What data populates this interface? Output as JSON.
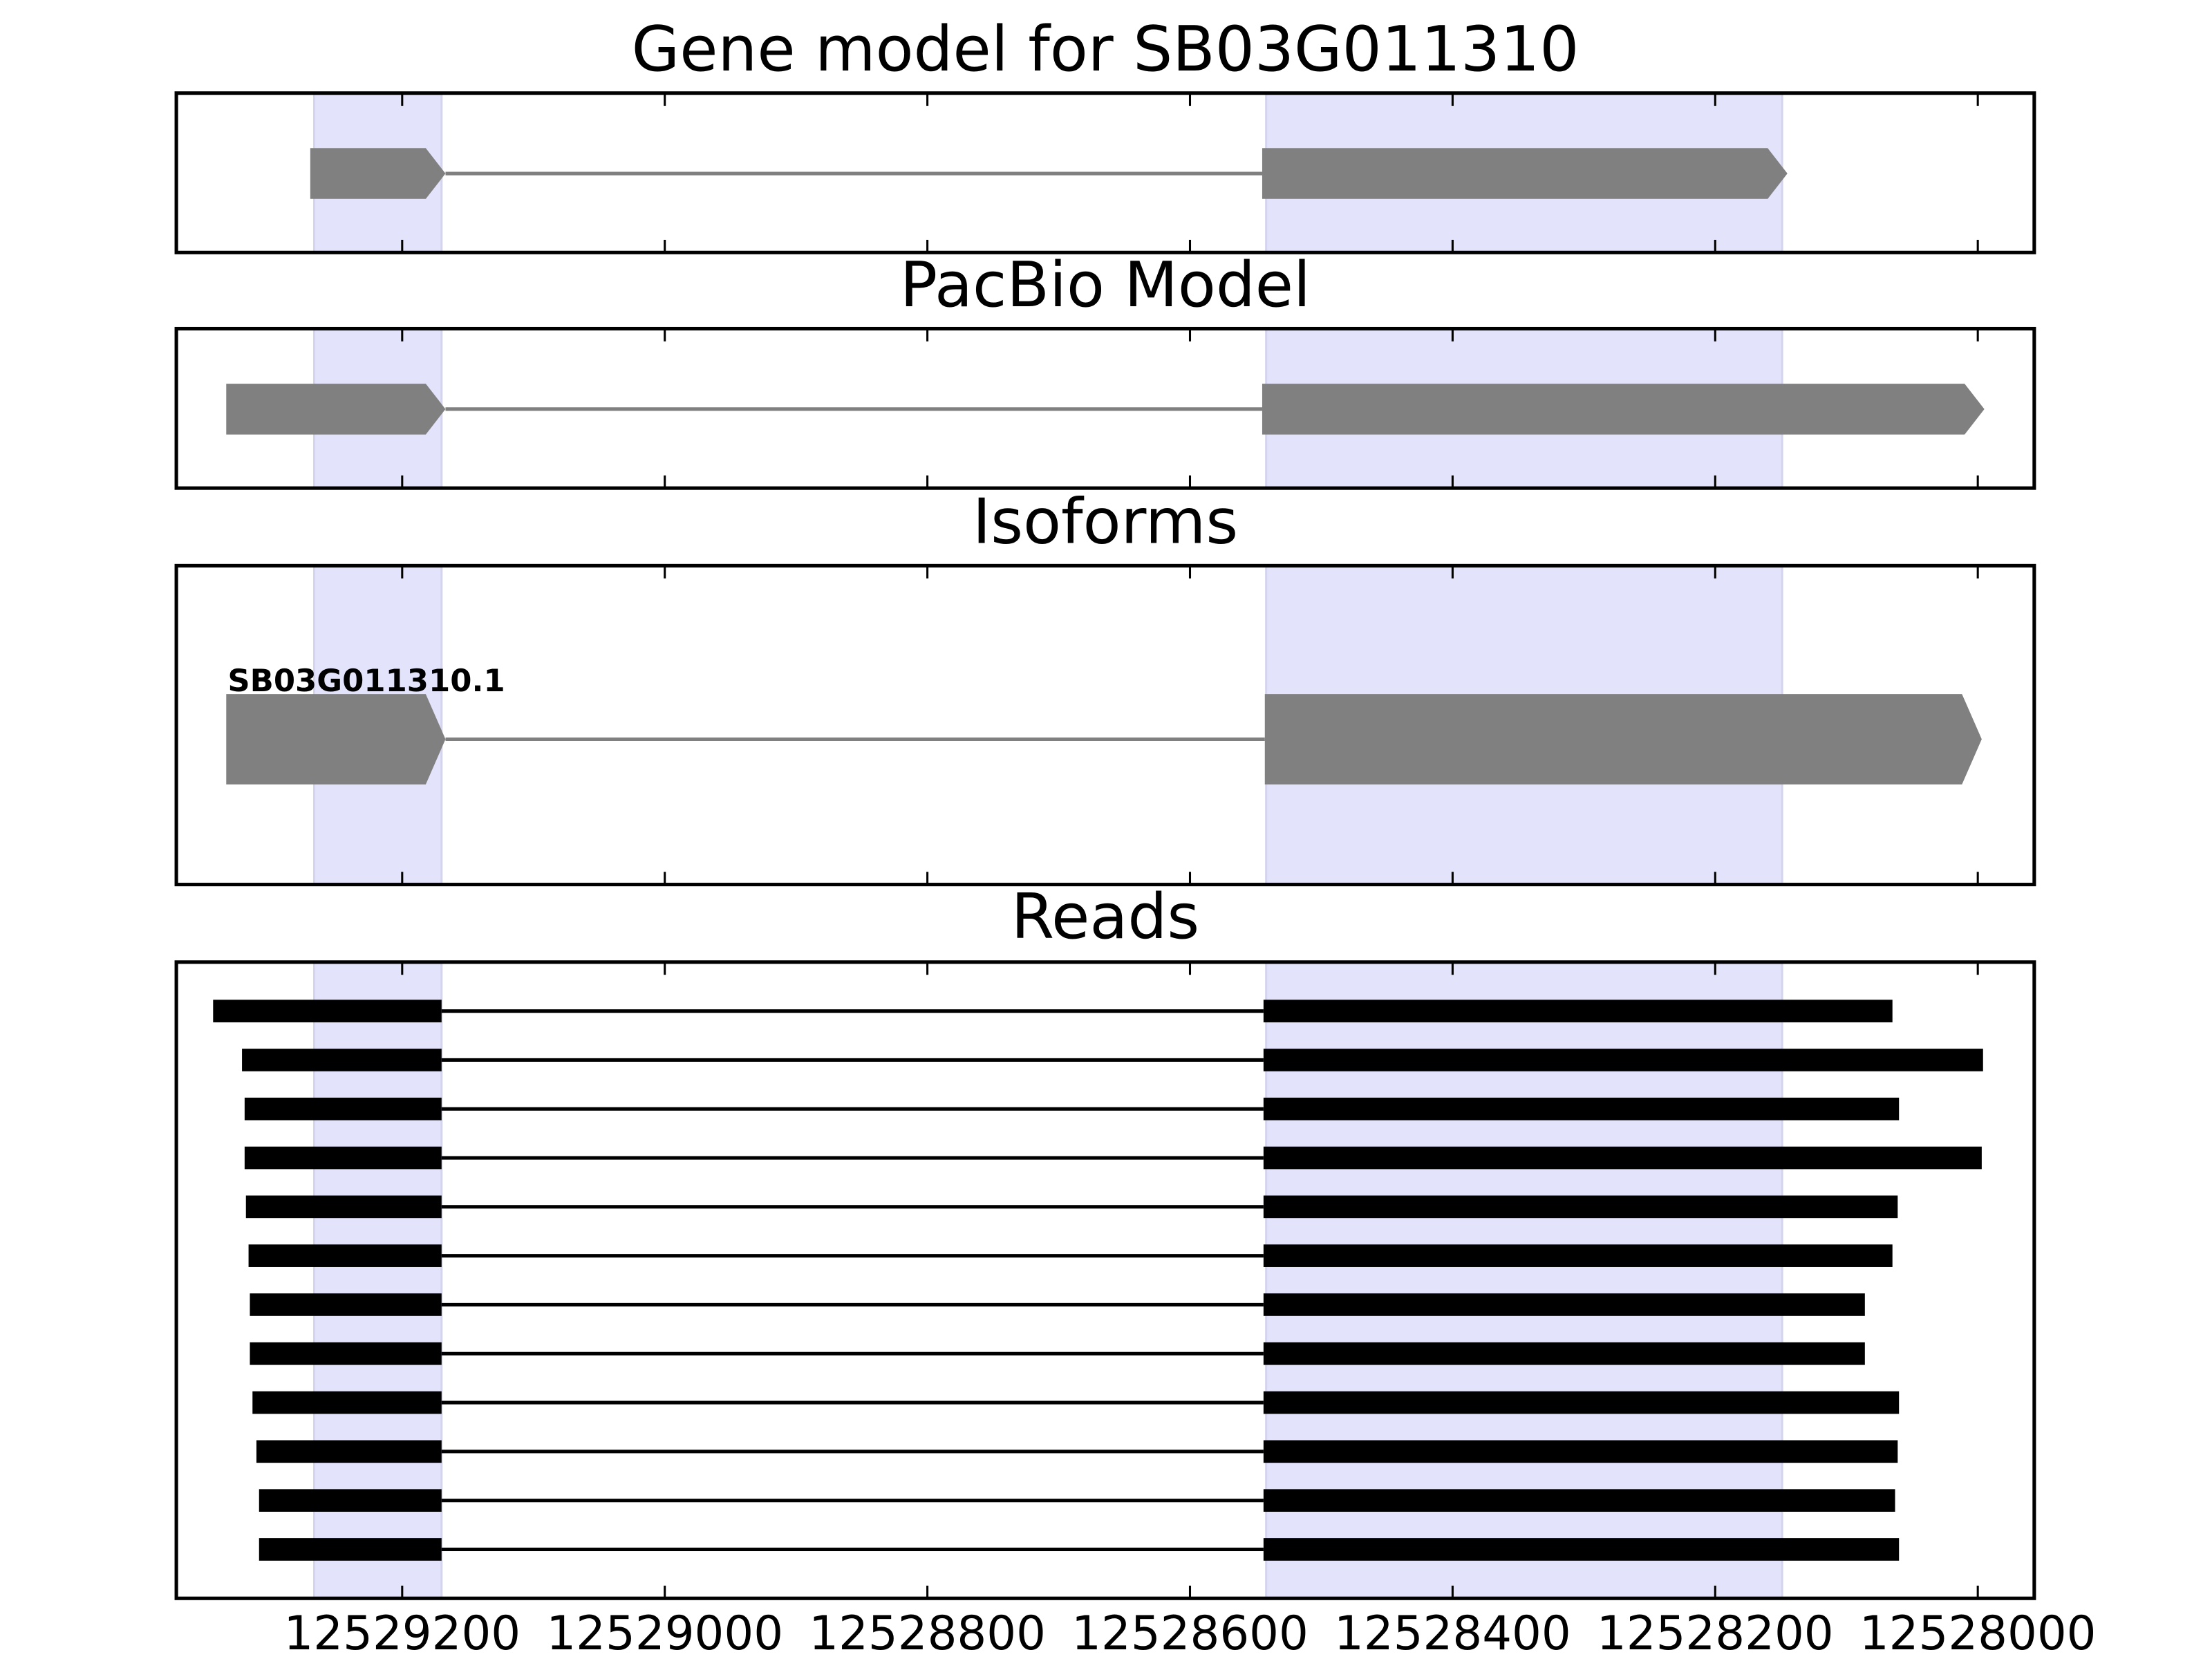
{
  "chart_data": [
    {
      "type": "gene",
      "title": "Gene model for SB03G011310",
      "color": "#808080",
      "xlim": [
        12529372,
        12527957
      ],
      "xticks": [
        12529200,
        12529000,
        12528800,
        12528600,
        12528400,
        12528200,
        12528000
      ],
      "highlights": [
        [
          12529267,
          12529170
        ],
        [
          12528542,
          12528149
        ]
      ],
      "highlight_color": "#e3e3fc",
      "exons": [
        [
          12529270,
          12529167
        ],
        [
          12528545,
          12528145
        ]
      ]
    },
    {
      "type": "gene",
      "title": "PacBio Model",
      "color": "#808080",
      "xlim": [
        12529372,
        12527957
      ],
      "xticks": [
        12529200,
        12529000,
        12528800,
        12528600,
        12528400,
        12528200,
        12528000
      ],
      "highlights": [
        [
          12529267,
          12529170
        ],
        [
          12528542,
          12528149
        ]
      ],
      "highlight_color": "#e3e3fc",
      "exons": [
        [
          12529334,
          12529167
        ],
        [
          12528545,
          12527995
        ]
      ]
    },
    {
      "type": "isoforms",
      "title": "Isoforms",
      "color": "#808080",
      "xlim": [
        12529372,
        12527957
      ],
      "xticks": [
        12529200,
        12529000,
        12528800,
        12528600,
        12528400,
        12528200,
        12528000
      ],
      "highlights": [
        [
          12529267,
          12529170
        ],
        [
          12528542,
          12528149
        ]
      ],
      "highlight_color": "#e3e3fc",
      "isoforms": [
        {
          "name": "SB03G011310.1",
          "exons": [
            [
              12529334,
              12529167
            ],
            [
              12528543,
              12527997
            ]
          ]
        }
      ]
    },
    {
      "type": "reads",
      "title": "Reads",
      "color": "#000000",
      "xlim": [
        12529372,
        12527957
      ],
      "xticks": [
        12529200,
        12529000,
        12528800,
        12528600,
        12528400,
        12528200,
        12528000
      ],
      "highlights": [
        [
          12529267,
          12529170
        ],
        [
          12528542,
          12528149
        ]
      ],
      "highlight_color": "#e3e3fc",
      "reads": [
        [
          [
            12529344,
            12529170
          ],
          [
            12528544,
            12528065
          ]
        ],
        [
          [
            12529322,
            12529170
          ],
          [
            12528544,
            12527996
          ]
        ],
        [
          [
            12529320,
            12529170
          ],
          [
            12528544,
            12528060
          ]
        ],
        [
          [
            12529320,
            12529170
          ],
          [
            12528544,
            12527997
          ]
        ],
        [
          [
            12529319,
            12529170
          ],
          [
            12528544,
            12528061
          ]
        ],
        [
          [
            12529317,
            12529170
          ],
          [
            12528544,
            12528065
          ]
        ],
        [
          [
            12529316,
            12529170
          ],
          [
            12528544,
            12528086
          ]
        ],
        [
          [
            12529316,
            12529170
          ],
          [
            12528544,
            12528086
          ]
        ],
        [
          [
            12529314,
            12529170
          ],
          [
            12528544,
            12528060
          ]
        ],
        [
          [
            12529311,
            12529170
          ],
          [
            12528544,
            12528061
          ]
        ],
        [
          [
            12529309,
            12529170
          ],
          [
            12528544,
            12528063
          ]
        ],
        [
          [
            12529309,
            12529170
          ],
          [
            12528544,
            12528060
          ]
        ]
      ]
    }
  ]
}
